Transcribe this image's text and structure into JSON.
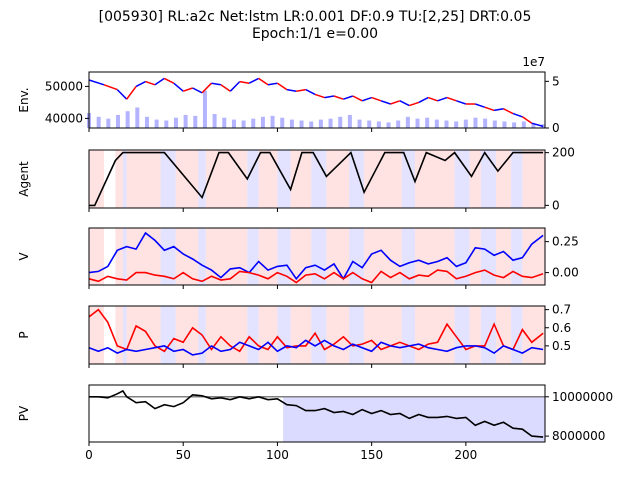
{
  "figure": {
    "title_line1": "[005930] RL:a2c Net:lstm LR:0.001 DF:0.9 TU:[2,25] DRT:0.05",
    "title_line2": "Epoch:1/1 e=0.00"
  },
  "colors": {
    "buy": "#ff0000",
    "sell": "#0000ff",
    "buy_bg": "#ffcccc",
    "sell_bg": "#ccccff",
    "volume": "#b3b3ff",
    "agent_line": "#000000",
    "pv_line": "#000000",
    "pv_base": "#808080"
  },
  "chart_data": [
    {
      "type": "line",
      "panel": "env",
      "ylabel": "Env.",
      "xlim": [
        0,
        242
      ],
      "ylim": [
        37000,
        54500
      ],
      "yticks": [
        "40000",
        "50000"
      ],
      "right_ylim": [
        0,
        60000000
      ],
      "right_yticks": [
        "0",
        "5"
      ],
      "right_offset_label": "1e7",
      "series": [
        {
          "x": [
            0,
            8,
            15,
            20,
            25,
            30,
            35,
            40,
            45,
            50,
            55,
            60,
            65,
            70,
            75,
            80,
            85,
            90,
            95,
            100,
            105,
            110,
            115,
            120,
            125,
            130,
            135,
            140,
            145,
            150,
            155,
            160,
            165,
            170,
            175,
            180,
            185,
            190,
            195,
            200,
            205,
            210,
            215,
            220,
            225,
            230,
            235,
            241
          ],
          "values": [
            52000,
            50500,
            49000,
            46000,
            50000,
            51500,
            50500,
            52500,
            51000,
            48500,
            49500,
            48000,
            51000,
            50500,
            48500,
            51500,
            51000,
            52500,
            50500,
            51000,
            49000,
            48500,
            49000,
            47500,
            46500,
            47000,
            46000,
            47000,
            45500,
            46500,
            45500,
            44500,
            45500,
            44000,
            45000,
            46500,
            45500,
            46500,
            45500,
            44500,
            44500,
            43500,
            42500,
            43000,
            41500,
            40500,
            38500,
            37500
          ]
        }
      ],
      "volume": [
        16,
        12,
        10,
        14,
        18,
        22,
        12,
        9,
        8,
        11,
        14,
        13,
        40,
        15,
        11,
        9,
        8,
        10,
        12,
        13,
        11,
        9,
        8,
        7,
        9,
        10,
        12,
        14,
        9,
        8,
        7,
        6,
        8,
        12,
        10,
        11,
        9,
        8,
        7,
        9,
        11,
        10,
        8,
        7,
        6,
        7,
        5,
        4
      ]
    },
    {
      "type": "line",
      "panel": "agent",
      "ylabel": "Agent",
      "xlim": [
        0,
        242
      ],
      "ylim": [
        -10,
        210
      ],
      "yticks": [
        "0",
        "200"
      ],
      "series": [
        {
          "x": [
            0,
            3,
            14,
            18,
            22,
            25,
            40,
            60,
            69,
            70,
            74,
            84,
            91,
            96,
            107,
            113,
            119,
            126,
            139,
            146,
            157,
            167,
            173,
            179,
            189,
            194,
            203,
            210,
            217,
            225,
            229,
            241
          ],
          "values": [
            0,
            0,
            170,
            200,
            200,
            200,
            200,
            30,
            200,
            200,
            200,
            100,
            200,
            200,
            60,
            200,
            200,
            110,
            200,
            50,
            200,
            200,
            90,
            200,
            170,
            200,
            110,
            200,
            130,
            200,
            200,
            200
          ]
        }
      ]
    },
    {
      "type": "line",
      "panel": "v",
      "ylabel": "V",
      "xlim": [
        0,
        242
      ],
      "ylim": [
        -0.1,
        0.36
      ],
      "yticks": [
        "0.00",
        "0.25"
      ],
      "series": [
        {
          "color": "sell",
          "x": [
            0,
            5,
            10,
            15,
            20,
            25,
            30,
            35,
            40,
            45,
            50,
            55,
            60,
            65,
            70,
            75,
            80,
            85,
            90,
            95,
            100,
            105,
            110,
            115,
            120,
            125,
            130,
            135,
            140,
            145,
            150,
            155,
            160,
            165,
            170,
            175,
            180,
            185,
            190,
            195,
            200,
            205,
            210,
            215,
            220,
            225,
            230,
            235,
            241
          ],
          "values": [
            0.0,
            0.01,
            0.05,
            0.18,
            0.21,
            0.19,
            0.32,
            0.26,
            0.18,
            0.21,
            0.15,
            0.11,
            0.06,
            0.02,
            -0.04,
            0.03,
            0.04,
            0.0,
            0.09,
            0.02,
            0.05,
            0.06,
            -0.05,
            0.04,
            0.06,
            0.02,
            0.07,
            -0.05,
            0.09,
            0.04,
            0.15,
            0.18,
            0.1,
            0.05,
            0.08,
            0.1,
            0.07,
            0.09,
            0.12,
            0.05,
            0.08,
            0.2,
            0.19,
            0.14,
            0.17,
            0.1,
            0.12,
            0.23,
            0.3
          ]
        },
        {
          "color": "buy",
          "x": [
            0,
            5,
            10,
            15,
            20,
            25,
            30,
            35,
            40,
            45,
            50,
            55,
            60,
            65,
            70,
            75,
            80,
            85,
            90,
            95,
            100,
            105,
            110,
            115,
            120,
            125,
            130,
            135,
            140,
            145,
            150,
            155,
            160,
            165,
            170,
            175,
            180,
            185,
            190,
            195,
            200,
            205,
            210,
            215,
            220,
            225,
            230,
            235,
            241
          ],
          "values": [
            -0.05,
            -0.07,
            -0.03,
            -0.05,
            -0.06,
            0.0,
            0.0,
            -0.02,
            -0.03,
            -0.05,
            0.0,
            -0.05,
            -0.07,
            -0.03,
            -0.06,
            -0.05,
            0.01,
            0.0,
            -0.02,
            -0.05,
            0.0,
            -0.03,
            -0.08,
            -0.02,
            -0.01,
            -0.05,
            0.0,
            -0.05,
            0.0,
            -0.05,
            -0.08,
            0.01,
            -0.04,
            0.0,
            -0.05,
            -0.02,
            -0.03,
            0.02,
            0.01,
            -0.05,
            -0.03,
            0.0,
            0.02,
            -0.02,
            -0.04,
            0.01,
            -0.03,
            -0.04,
            -0.01
          ]
        }
      ]
    },
    {
      "type": "line",
      "panel": "p",
      "ylabel": "P",
      "xlim": [
        0,
        242
      ],
      "ylim": [
        0.4,
        0.72
      ],
      "yticks": [
        "0.5",
        "0.6",
        "0.7"
      ],
      "series": [
        {
          "color": "buy",
          "x": [
            0,
            5,
            10,
            15,
            20,
            25,
            30,
            35,
            40,
            45,
            50,
            55,
            60,
            65,
            70,
            75,
            80,
            85,
            90,
            95,
            100,
            105,
            110,
            115,
            120,
            125,
            130,
            135,
            140,
            145,
            150,
            155,
            160,
            165,
            170,
            175,
            180,
            185,
            190,
            195,
            200,
            205,
            210,
            215,
            220,
            225,
            230,
            235,
            241
          ],
          "values": [
            0.66,
            0.7,
            0.63,
            0.5,
            0.48,
            0.61,
            0.58,
            0.5,
            0.47,
            0.54,
            0.52,
            0.6,
            0.56,
            0.48,
            0.55,
            0.5,
            0.47,
            0.55,
            0.5,
            0.48,
            0.55,
            0.49,
            0.5,
            0.5,
            0.57,
            0.48,
            0.51,
            0.55,
            0.5,
            0.51,
            0.53,
            0.48,
            0.5,
            0.52,
            0.5,
            0.48,
            0.51,
            0.52,
            0.62,
            0.55,
            0.48,
            0.5,
            0.5,
            0.62,
            0.5,
            0.48,
            0.59,
            0.52,
            0.57
          ]
        },
        {
          "color": "sell",
          "x": [
            0,
            5,
            10,
            15,
            20,
            25,
            30,
            35,
            40,
            45,
            50,
            55,
            60,
            65,
            70,
            75,
            80,
            85,
            90,
            95,
            100,
            105,
            110,
            115,
            120,
            125,
            130,
            135,
            140,
            145,
            150,
            155,
            160,
            165,
            170,
            175,
            180,
            185,
            190,
            195,
            200,
            205,
            210,
            215,
            220,
            225,
            230,
            235,
            241
          ],
          "values": [
            0.49,
            0.47,
            0.49,
            0.46,
            0.48,
            0.47,
            0.48,
            0.49,
            0.5,
            0.47,
            0.48,
            0.45,
            0.46,
            0.5,
            0.47,
            0.48,
            0.52,
            0.5,
            0.48,
            0.52,
            0.47,
            0.5,
            0.49,
            0.53,
            0.5,
            0.53,
            0.5,
            0.48,
            0.51,
            0.49,
            0.47,
            0.52,
            0.5,
            0.49,
            0.5,
            0.51,
            0.49,
            0.48,
            0.47,
            0.49,
            0.5,
            0.5,
            0.49,
            0.46,
            0.5,
            0.48,
            0.46,
            0.49,
            0.48
          ]
        }
      ]
    },
    {
      "type": "line",
      "panel": "pv",
      "ylabel": "PV",
      "xlim": [
        0,
        242
      ],
      "ylim": [
        7700000,
        10600000
      ],
      "yticks": [
        "8000000",
        "10000000"
      ],
      "xticks": [
        "0",
        "50",
        "100",
        "150",
        "200"
      ],
      "baseline": 10000000,
      "series": [
        {
          "x": [
            0,
            5,
            10,
            15,
            18,
            20,
            25,
            30,
            35,
            40,
            45,
            50,
            55,
            60,
            65,
            70,
            75,
            80,
            85,
            90,
            95,
            100,
            105,
            110,
            115,
            120,
            125,
            130,
            135,
            140,
            145,
            150,
            155,
            160,
            165,
            170,
            175,
            180,
            185,
            190,
            195,
            200,
            205,
            210,
            215,
            220,
            225,
            230,
            235,
            241
          ],
          "values": [
            10000000,
            10000000,
            9950000,
            10150000,
            10300000,
            10000000,
            9700000,
            9750000,
            9400000,
            9600000,
            9500000,
            9700000,
            10100000,
            10050000,
            9900000,
            9950000,
            9850000,
            10000000,
            9900000,
            10000000,
            9850000,
            9900000,
            9600000,
            9550000,
            9300000,
            9300000,
            9400000,
            9200000,
            9250000,
            9100000,
            9350000,
            9150000,
            9300000,
            9100000,
            9150000,
            8900000,
            9100000,
            8950000,
            8950000,
            9000000,
            8900000,
            8950000,
            8550000,
            8750000,
            8550000,
            8700000,
            8400000,
            8350000,
            8000000,
            7950000
          ]
        }
      ]
    }
  ],
  "backgrounds": {
    "upper_segments": [
      [
        0,
        8,
        "buy"
      ],
      [
        14,
        18,
        "buy"
      ],
      [
        18,
        20,
        "sell"
      ],
      [
        20,
        38,
        "buy"
      ],
      [
        38,
        46,
        "sell"
      ],
      [
        46,
        58,
        "buy"
      ],
      [
        58,
        62,
        "sell"
      ],
      [
        62,
        72,
        "buy"
      ],
      [
        72,
        84,
        "buy"
      ],
      [
        84,
        90,
        "sell"
      ],
      [
        90,
        100,
        "buy"
      ],
      [
        100,
        107,
        "sell"
      ],
      [
        107,
        118,
        "buy"
      ],
      [
        118,
        126,
        "sell"
      ],
      [
        126,
        138,
        "buy"
      ],
      [
        138,
        146,
        "sell"
      ],
      [
        146,
        157,
        "buy"
      ],
      [
        157,
        166,
        "buy"
      ],
      [
        166,
        173,
        "sell"
      ],
      [
        173,
        186,
        "buy"
      ],
      [
        186,
        194,
        "buy"
      ],
      [
        194,
        202,
        "sell"
      ],
      [
        202,
        208,
        "buy"
      ],
      [
        208,
        216,
        "sell"
      ],
      [
        216,
        224,
        "buy"
      ],
      [
        224,
        230,
        "sell"
      ],
      [
        230,
        242,
        "buy"
      ]
    ],
    "pv_shaded_from_x": 103
  }
}
